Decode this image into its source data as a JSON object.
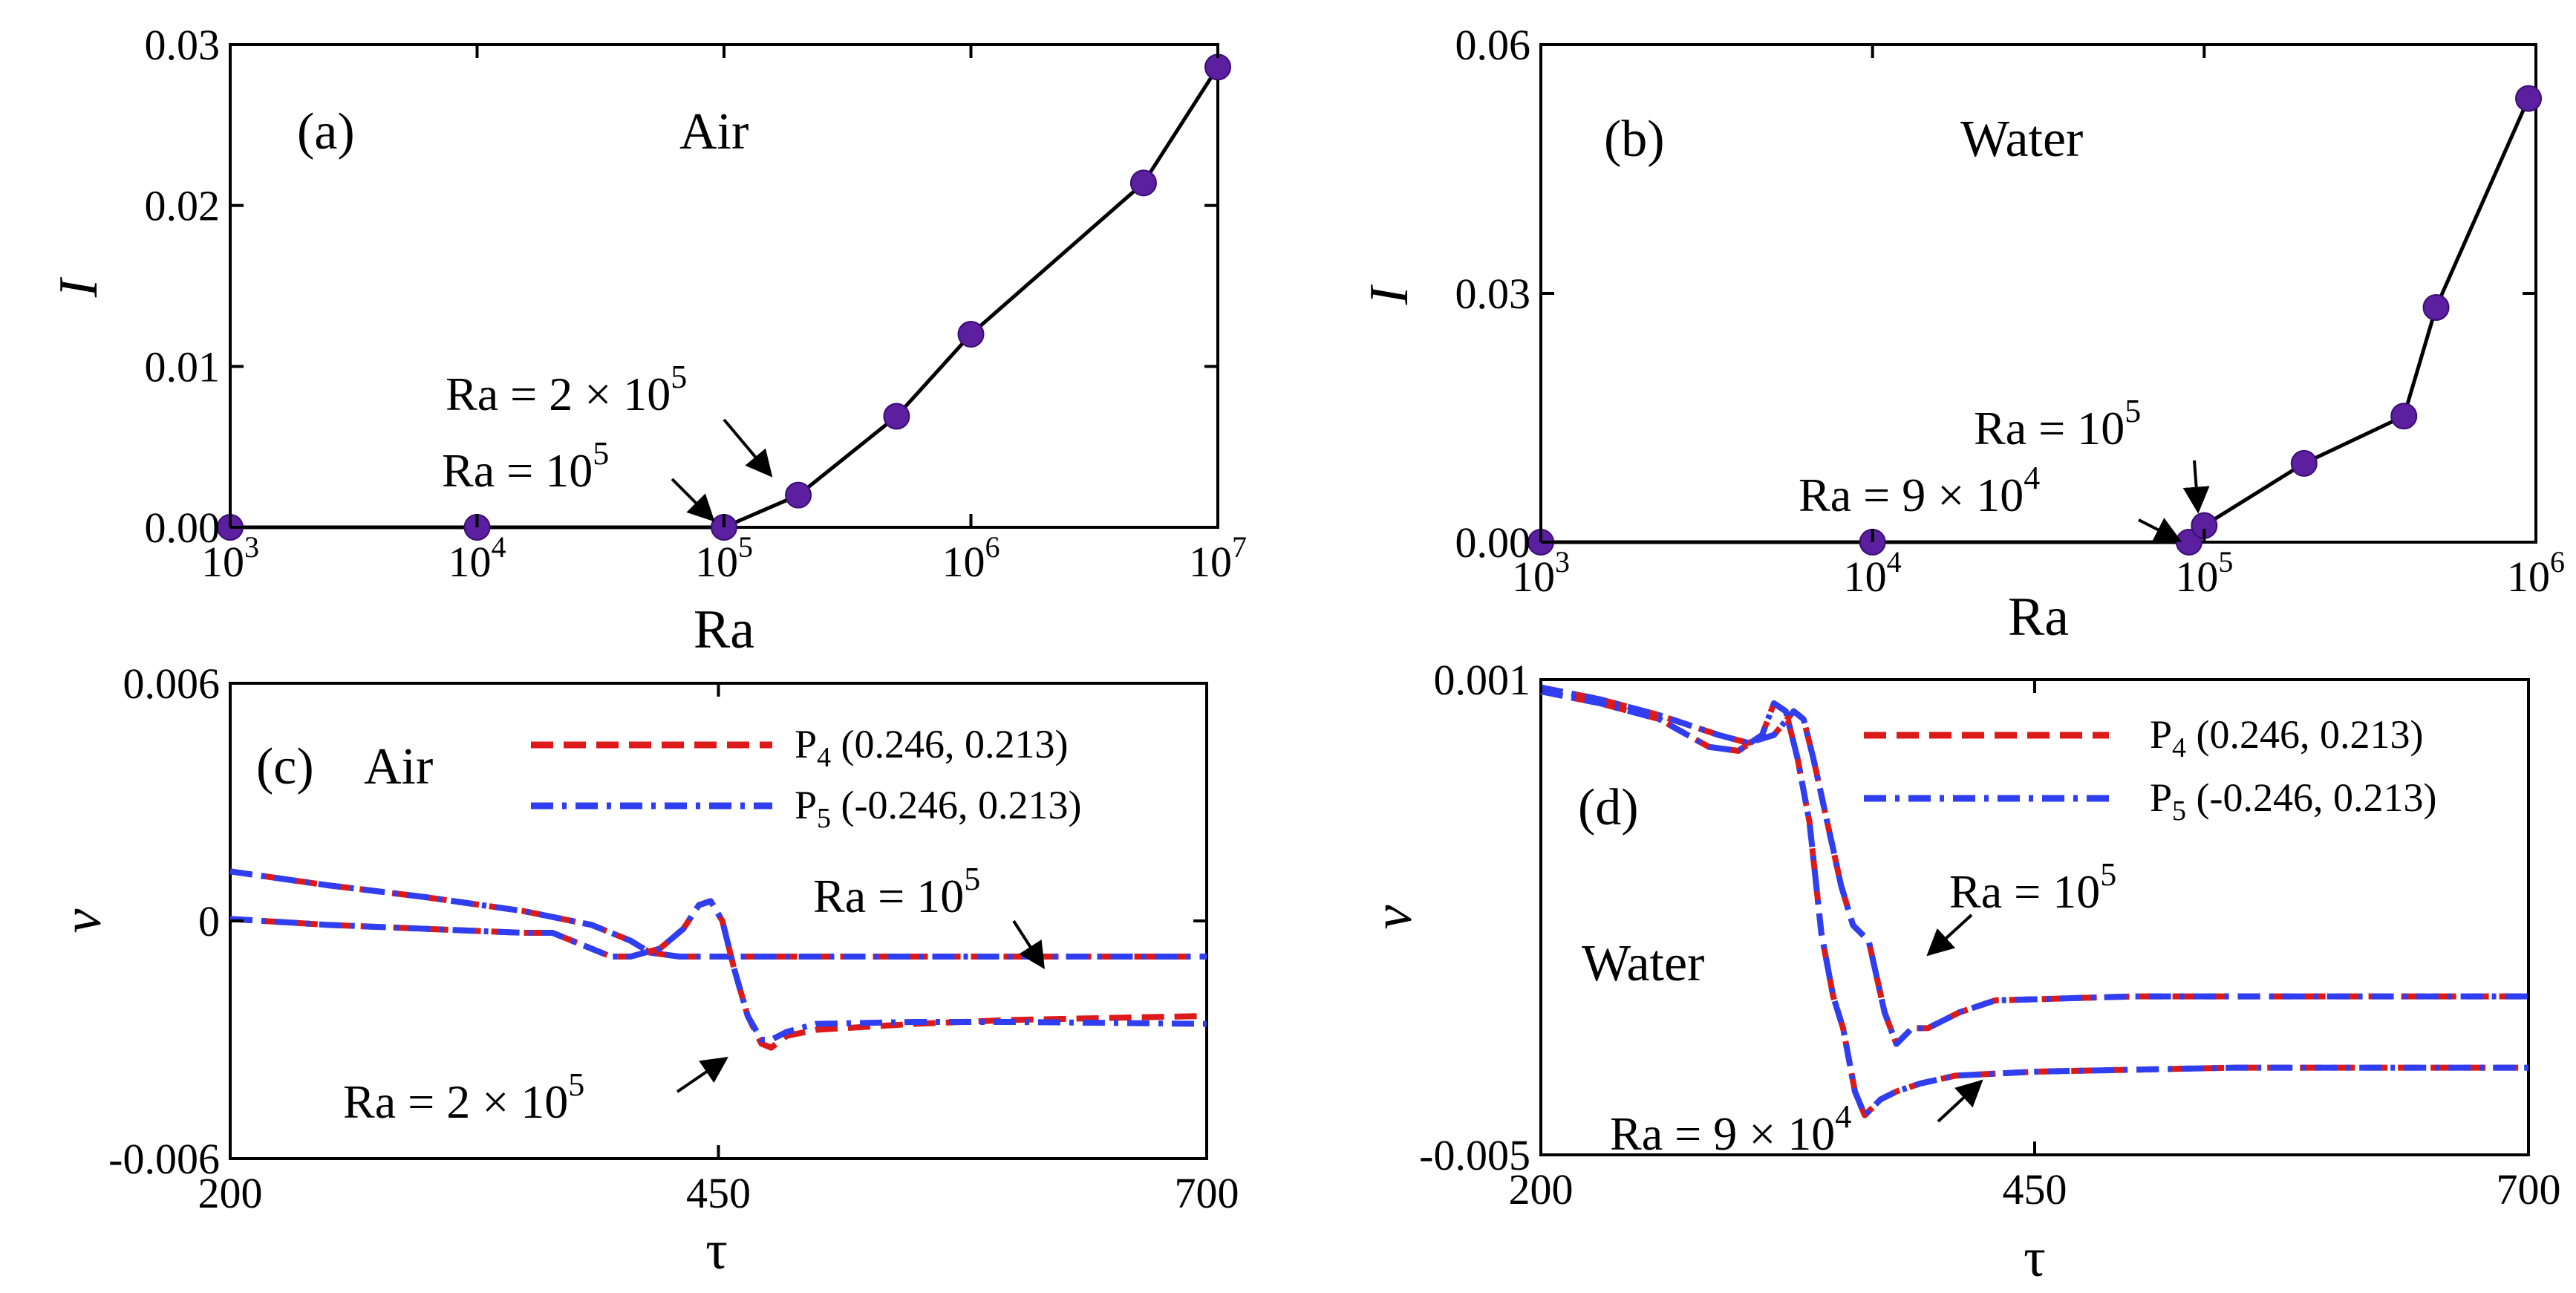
{
  "colors": {
    "scatter": "#5b1fa0",
    "p4": "#dd1a1a",
    "p5": "#2e3ef0",
    "axis": "#000000"
  },
  "chart_data": [
    {
      "id": "a",
      "type": "line",
      "panel_label": "(a)",
      "fluid_label": "Air",
      "xlabel": "Ra",
      "ylabel": "I",
      "xscale": "log",
      "xlim": [
        1000,
        10000000
      ],
      "ylim": [
        0,
        0.03
      ],
      "x_ticks": [
        {
          "base": "10",
          "exp": "3",
          "value": 1000
        },
        {
          "base": "10",
          "exp": "4",
          "value": 10000
        },
        {
          "base": "10",
          "exp": "5",
          "value": 100000
        },
        {
          "base": "10",
          "exp": "6",
          "value": 1000000
        },
        {
          "base": "10",
          "exp": "7",
          "value": 10000000
        }
      ],
      "y_ticks": [
        {
          "label": "0.00",
          "value": 0
        },
        {
          "label": "0.01",
          "value": 0.01
        },
        {
          "label": "0.02",
          "value": 0.02
        },
        {
          "label": "0.03",
          "value": 0.03
        }
      ],
      "x": [
        1000,
        10000,
        100000,
        200000,
        500000,
        1000000,
        5000000,
        10000000
      ],
      "values": [
        0,
        0,
        0,
        0.002,
        0.0069,
        0.012,
        0.0214,
        0.0286
      ],
      "annotations": [
        {
          "base": "Ra = 2 × 10",
          "exp": "5",
          "target": [
            200000,
            0.0025
          ]
        },
        {
          "base": "Ra = 10",
          "exp": "5",
          "target": [
            100000,
            0.0001
          ]
        }
      ]
    },
    {
      "id": "b",
      "type": "line",
      "panel_label": "(b)",
      "fluid_label": "Water",
      "xlabel": "Ra",
      "ylabel": "I",
      "xscale": "log",
      "xlim": [
        1000,
        1000000
      ],
      "ylim": [
        0,
        0.06
      ],
      "x_ticks": [
        {
          "base": "10",
          "exp": "3",
          "value": 1000
        },
        {
          "base": "10",
          "exp": "4",
          "value": 10000
        },
        {
          "base": "10",
          "exp": "5",
          "value": 100000
        },
        {
          "base": "10",
          "exp": "6",
          "value": 1000000
        }
      ],
      "y_ticks": [
        {
          "label": "0.00",
          "value": 0
        },
        {
          "label": "0.03",
          "value": 0.03
        },
        {
          "label": "0.06",
          "value": 0.06
        }
      ],
      "x": [
        1000,
        10000,
        90000,
        100000,
        200000,
        400000,
        500000,
        950000
      ],
      "values": [
        0,
        0,
        0,
        0.002,
        0.0095,
        0.0152,
        0.0283,
        0.0535
      ],
      "annotations": [
        {
          "base": "Ra = 10",
          "exp": "5",
          "target": [
            100000,
            0.0025
          ]
        },
        {
          "base": "Ra = 9 × 10",
          "exp": "4",
          "target": [
            90000,
            0.0002
          ]
        }
      ]
    },
    {
      "id": "c",
      "type": "line",
      "panel_label": "(c)",
      "fluid_label": "Air",
      "xlabel": "τ",
      "ylabel": "v",
      "xlim": [
        200,
        700
      ],
      "ylim": [
        -0.006,
        0.006
      ],
      "x_ticks": [
        {
          "label": "200",
          "value": 200
        },
        {
          "label": "450",
          "value": 450
        },
        {
          "label": "700",
          "value": 700
        }
      ],
      "y_ticks": [
        {
          "label": "-0.006",
          "value": -0.006
        },
        {
          "label": "0",
          "value": 0
        },
        {
          "label": "0.006",
          "value": 0.006
        }
      ],
      "legend": [
        {
          "name": "P",
          "sub": "4",
          "coords": " (0.246, 0.213)"
        },
        {
          "name": "P",
          "sub": "5",
          "coords": " (-0.246, 0.213)"
        }
      ],
      "series": [
        {
          "name": "P4, Ra = 10^5",
          "style": "p4",
          "points": [
            [
              200,
              0.00125
            ],
            [
              250,
              0.0009
            ],
            [
              300,
              0.0006
            ],
            [
              350,
              0.00025
            ],
            [
              385,
              -0.0001
            ],
            [
              405,
              -0.0005
            ],
            [
              415,
              -0.0008
            ],
            [
              430,
              -0.0009
            ],
            [
              450,
              -0.0009
            ],
            [
              500,
              -0.0009
            ],
            [
              600,
              -0.0009
            ],
            [
              700,
              -0.0009
            ]
          ]
        },
        {
          "name": "P5, Ra = 10^5",
          "style": "p5",
          "points": [
            [
              200,
              0.00125
            ],
            [
              250,
              0.0009
            ],
            [
              300,
              0.0006
            ],
            [
              350,
              0.00025
            ],
            [
              385,
              -0.0001
            ],
            [
              405,
              -0.0005
            ],
            [
              415,
              -0.0008
            ],
            [
              430,
              -0.0009
            ],
            [
              450,
              -0.0009
            ],
            [
              500,
              -0.0009
            ],
            [
              600,
              -0.0009
            ],
            [
              700,
              -0.0009
            ]
          ]
        },
        {
          "name": "P4, Ra = 2×10^5",
          "style": "p4",
          "points": [
            [
              200,
              5e-05
            ],
            [
              250,
              -0.0001
            ],
            [
              300,
              -0.0002
            ],
            [
              350,
              -0.0003
            ],
            [
              365,
              -0.0003
            ],
            [
              380,
              -0.0006
            ],
            [
              395,
              -0.0009
            ],
            [
              405,
              -0.0009
            ],
            [
              420,
              -0.0007
            ],
            [
              432,
              -0.0002
            ],
            [
              440,
              0.0004
            ],
            [
              446,
              0.0005
            ],
            [
              452,
              0.0
            ],
            [
              458,
              -0.0012
            ],
            [
              465,
              -0.0024
            ],
            [
              472,
              -0.0031
            ],
            [
              477,
              -0.0032
            ],
            [
              485,
              -0.0029
            ],
            [
              500,
              -0.00275
            ],
            [
              550,
              -0.0026
            ],
            [
              600,
              -0.0025
            ],
            [
              700,
              -0.0024
            ]
          ]
        },
        {
          "name": "P5, Ra = 2×10^5",
          "style": "p5",
          "points": [
            [
              200,
              5e-05
            ],
            [
              250,
              -0.0001
            ],
            [
              300,
              -0.0002
            ],
            [
              350,
              -0.0003
            ],
            [
              365,
              -0.0003
            ],
            [
              380,
              -0.0006
            ],
            [
              395,
              -0.0009
            ],
            [
              405,
              -0.0009
            ],
            [
              420,
              -0.0007
            ],
            [
              432,
              -0.0002
            ],
            [
              440,
              0.0004
            ],
            [
              446,
              0.0005
            ],
            [
              452,
              0.0
            ],
            [
              458,
              -0.0012
            ],
            [
              465,
              -0.0024
            ],
            [
              472,
              -0.003
            ],
            [
              477,
              -0.003
            ],
            [
              485,
              -0.0028
            ],
            [
              500,
              -0.0026
            ],
            [
              550,
              -0.00255
            ],
            [
              600,
              -0.00255
            ],
            [
              700,
              -0.0026
            ]
          ]
        }
      ],
      "annotations": [
        {
          "base": "Ra = 10",
          "exp": "5",
          "target": [
            620,
            -0.0009
          ]
        },
        {
          "base": "Ra = 2 × 10",
          "exp": "5",
          "target": [
            475,
            -0.0027
          ]
        }
      ]
    },
    {
      "id": "d",
      "type": "line",
      "panel_label": "(d)",
      "fluid_label": "Water",
      "xlabel": "τ",
      "ylabel": "v",
      "xlim": [
        200,
        700
      ],
      "ylim": [
        -0.005,
        0.001
      ],
      "x_ticks": [
        {
          "label": "200",
          "value": 200
        },
        {
          "label": "450",
          "value": 450
        },
        {
          "label": "700",
          "value": 700
        }
      ],
      "y_ticks": [
        {
          "label": "-0.005",
          "value": -0.005
        },
        {
          "label": "0.001",
          "value": 0.001
        }
      ],
      "legend": [
        {
          "name": "P",
          "sub": "4",
          "coords": " (0.246, 0.213)"
        },
        {
          "name": "P",
          "sub": "5",
          "coords": " (-0.246, 0.213)"
        }
      ],
      "series": [
        {
          "name": "P4, Ra = 10^5",
          "style": "p4",
          "points": [
            [
              200,
              0.0009
            ],
            [
              230,
              0.00075
            ],
            [
              260,
              0.00055
            ],
            [
              290,
              0.0003
            ],
            [
              305,
              0.0002
            ],
            [
              318,
              0.0003
            ],
            [
              328,
              0.0006
            ],
            [
              333,
              0.0005
            ],
            [
              338,
              0.0
            ],
            [
              345,
              -0.0008
            ],
            [
              352,
              -0.0016
            ],
            [
              358,
              -0.0021
            ],
            [
              366,
              -0.0023
            ],
            [
              374,
              -0.0032
            ],
            [
              380,
              -0.0036
            ],
            [
              388,
              -0.0034
            ],
            [
              396,
              -0.0034
            ],
            [
              404,
              -0.0033
            ],
            [
              412,
              -0.0032
            ],
            [
              430,
              -0.00305
            ],
            [
              500,
              -0.003
            ],
            [
              600,
              -0.003
            ],
            [
              700,
              -0.003
            ]
          ]
        },
        {
          "name": "P5, Ra = 10^5",
          "style": "p5",
          "points": [
            [
              200,
              0.0009
            ],
            [
              230,
              0.00075
            ],
            [
              260,
              0.00055
            ],
            [
              290,
              0.0003
            ],
            [
              305,
              0.0002
            ],
            [
              318,
              0.0003
            ],
            [
              328,
              0.0006
            ],
            [
              333,
              0.0005
            ],
            [
              338,
              0.0
            ],
            [
              345,
              -0.0008
            ],
            [
              352,
              -0.0016
            ],
            [
              358,
              -0.0021
            ],
            [
              366,
              -0.0023
            ],
            [
              374,
              -0.0032
            ],
            [
              380,
              -0.0036
            ],
            [
              388,
              -0.0034
            ],
            [
              396,
              -0.0034
            ],
            [
              404,
              -0.0033
            ],
            [
              412,
              -0.0032
            ],
            [
              430,
              -0.00305
            ],
            [
              500,
              -0.003
            ],
            [
              600,
              -0.003
            ],
            [
              700,
              -0.003
            ]
          ]
        },
        {
          "name": "P4, Ra = 9×10^4",
          "style": "p4",
          "points": [
            [
              200,
              0.00085
            ],
            [
              230,
              0.0007
            ],
            [
              260,
              0.0005
            ],
            [
              285,
              0.00015
            ],
            [
              300,
              0.0001
            ],
            [
              312,
              0.0003
            ],
            [
              318,
              0.0007
            ],
            [
              324,
              0.0006
            ],
            [
              330,
              0.0
            ],
            [
              336,
              -0.0008
            ],
            [
              342,
              -0.0022
            ],
            [
              348,
              -0.003
            ],
            [
              353,
              -0.0034
            ],
            [
              359,
              -0.0042
            ],
            [
              364,
              -0.0045
            ],
            [
              372,
              -0.0043
            ],
            [
              380,
              -0.0042
            ],
            [
              392,
              -0.0041
            ],
            [
              410,
              -0.004
            ],
            [
              450,
              -0.00395
            ],
            [
              550,
              -0.0039
            ],
            [
              700,
              -0.0039
            ]
          ]
        },
        {
          "name": "P5, Ra = 9×10^4",
          "style": "p5",
          "points": [
            [
              200,
              0.00085
            ],
            [
              230,
              0.0007
            ],
            [
              260,
              0.0005
            ],
            [
              285,
              0.00015
            ],
            [
              300,
              0.0001
            ],
            [
              312,
              0.0003
            ],
            [
              318,
              0.0007
            ],
            [
              324,
              0.0006
            ],
            [
              330,
              0.0
            ],
            [
              336,
              -0.0008
            ],
            [
              342,
              -0.0022
            ],
            [
              348,
              -0.003
            ],
            [
              353,
              -0.0034
            ],
            [
              359,
              -0.0042
            ],
            [
              364,
              -0.0045
            ],
            [
              372,
              -0.0043
            ],
            [
              380,
              -0.0042
            ],
            [
              392,
              -0.0041
            ],
            [
              410,
              -0.004
            ],
            [
              450,
              -0.00395
            ],
            [
              550,
              -0.0039
            ],
            [
              700,
              -0.0039
            ]
          ]
        }
      ],
      "annotations": [
        {
          "base": "Ra = 10",
          "exp": "5",
          "target": [
            392,
            -0.0032
          ]
        },
        {
          "base": "Ra = 9 × 10",
          "exp": "4",
          "target": [
            425,
            -0.0041
          ]
        }
      ]
    }
  ]
}
